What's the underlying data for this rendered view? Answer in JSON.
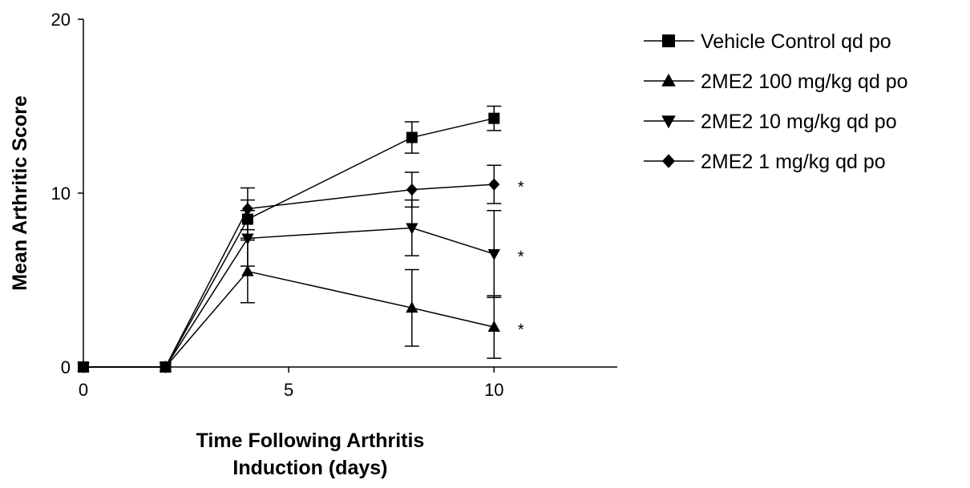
{
  "chart_data": {
    "type": "line",
    "title": "",
    "xlabel": "Time Following Arthritis Induction (days)",
    "xlabel_lines": [
      "Time Following Arthritis",
      "Induction (days)"
    ],
    "ylabel": "Mean Arthritic Score",
    "xlim": [
      0,
      13
    ],
    "ylim": [
      0,
      20
    ],
    "x_ticks": [
      0,
      5,
      10
    ],
    "y_ticks": [
      0,
      10,
      20
    ],
    "grid": false,
    "legend_position": "right",
    "series": [
      {
        "name": "Vehicle Control qd po",
        "marker": "square",
        "x": [
          0,
          2,
          4,
          8,
          10
        ],
        "y": [
          0,
          0,
          8.5,
          13.2,
          14.3
        ],
        "error": [
          0,
          0,
          1.1,
          0.9,
          0.7
        ]
      },
      {
        "name": "2ME2 100 mg/kg qd po",
        "marker": "triangle-up",
        "x": [
          0,
          2,
          4,
          8,
          10
        ],
        "y": [
          0,
          0,
          5.5,
          3.4,
          2.3
        ],
        "error": [
          0,
          0,
          1.8,
          2.2,
          1.8
        ]
      },
      {
        "name": "2ME2 10 mg/kg qd po",
        "marker": "triangle-down",
        "x": [
          0,
          2,
          4,
          8,
          10
        ],
        "y": [
          0,
          0,
          7.4,
          8.0,
          6.5
        ],
        "error": [
          0,
          0,
          1.6,
          1.6,
          2.5
        ]
      },
      {
        "name": "2ME2 1 mg/kg qd po",
        "marker": "diamond",
        "x": [
          0,
          2,
          4,
          8,
          10
        ],
        "y": [
          0,
          0,
          9.1,
          10.2,
          10.5
        ],
        "error": [
          0,
          0,
          1.2,
          1.0,
          1.1
        ]
      }
    ],
    "annotations": [
      {
        "text": "*",
        "x": 10.5,
        "y": 10.5
      },
      {
        "text": "*",
        "x": 10.5,
        "y": 6.5
      },
      {
        "text": "*",
        "x": 10.5,
        "y": 2.3
      }
    ]
  }
}
